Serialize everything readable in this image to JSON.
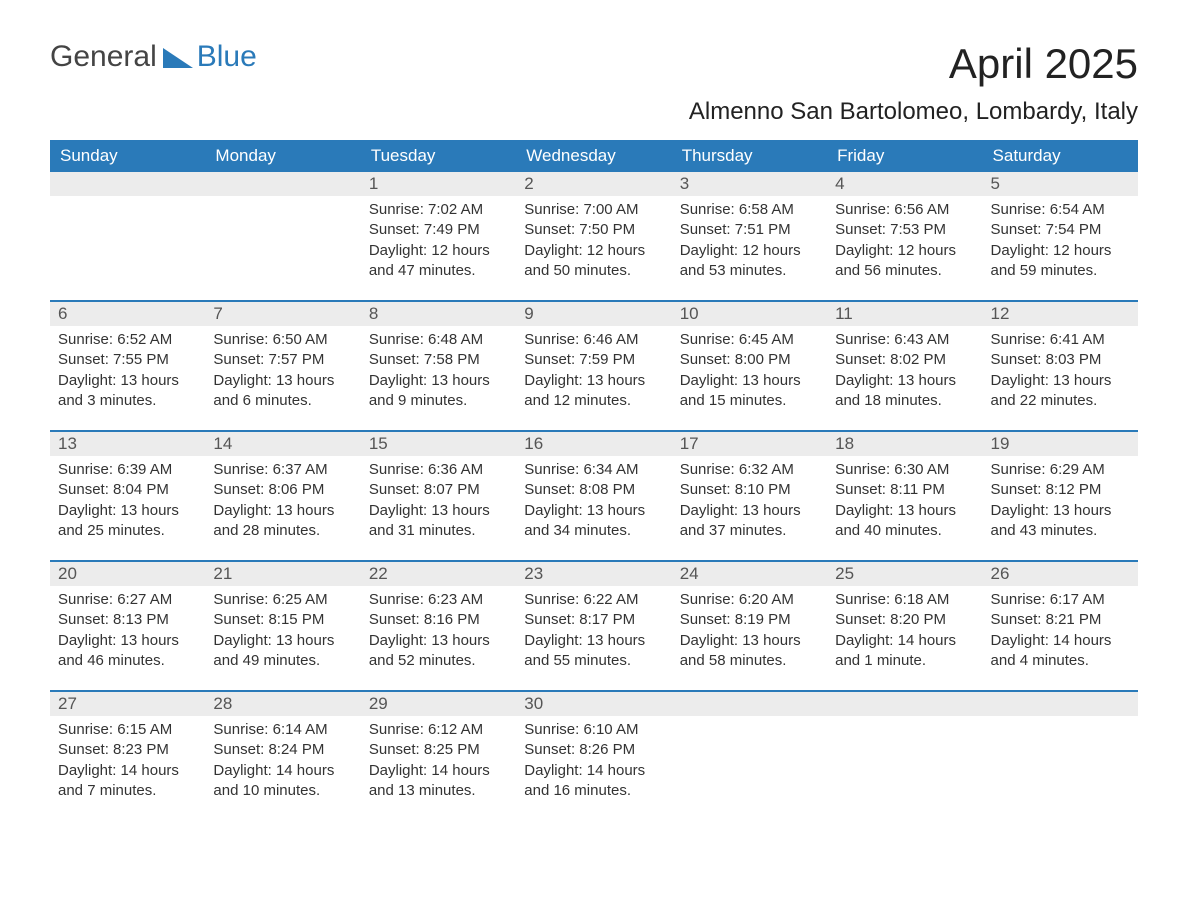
{
  "logo": {
    "general": "General",
    "blue": "Blue"
  },
  "title": "April 2025",
  "subtitle": "Almenno San Bartolomeo, Lombardy, Italy",
  "colors": {
    "header_bg": "#2a7ab9",
    "header_text": "#ffffff",
    "daynum_bg": "#ececec",
    "week_border": "#2a7ab9",
    "page_bg": "#ffffff",
    "text": "#333333"
  },
  "weekdays": [
    "Sunday",
    "Monday",
    "Tuesday",
    "Wednesday",
    "Thursday",
    "Friday",
    "Saturday"
  ],
  "weeks": [
    [
      {
        "day": "",
        "sunrise": "",
        "sunset": "",
        "daylight": ""
      },
      {
        "day": "",
        "sunrise": "",
        "sunset": "",
        "daylight": ""
      },
      {
        "day": "1",
        "sunrise": "Sunrise: 7:02 AM",
        "sunset": "Sunset: 7:49 PM",
        "daylight": "Daylight: 12 hours and 47 minutes."
      },
      {
        "day": "2",
        "sunrise": "Sunrise: 7:00 AM",
        "sunset": "Sunset: 7:50 PM",
        "daylight": "Daylight: 12 hours and 50 minutes."
      },
      {
        "day": "3",
        "sunrise": "Sunrise: 6:58 AM",
        "sunset": "Sunset: 7:51 PM",
        "daylight": "Daylight: 12 hours and 53 minutes."
      },
      {
        "day": "4",
        "sunrise": "Sunrise: 6:56 AM",
        "sunset": "Sunset: 7:53 PM",
        "daylight": "Daylight: 12 hours and 56 minutes."
      },
      {
        "day": "5",
        "sunrise": "Sunrise: 6:54 AM",
        "sunset": "Sunset: 7:54 PM",
        "daylight": "Daylight: 12 hours and 59 minutes."
      }
    ],
    [
      {
        "day": "6",
        "sunrise": "Sunrise: 6:52 AM",
        "sunset": "Sunset: 7:55 PM",
        "daylight": "Daylight: 13 hours and 3 minutes."
      },
      {
        "day": "7",
        "sunrise": "Sunrise: 6:50 AM",
        "sunset": "Sunset: 7:57 PM",
        "daylight": "Daylight: 13 hours and 6 minutes."
      },
      {
        "day": "8",
        "sunrise": "Sunrise: 6:48 AM",
        "sunset": "Sunset: 7:58 PM",
        "daylight": "Daylight: 13 hours and 9 minutes."
      },
      {
        "day": "9",
        "sunrise": "Sunrise: 6:46 AM",
        "sunset": "Sunset: 7:59 PM",
        "daylight": "Daylight: 13 hours and 12 minutes."
      },
      {
        "day": "10",
        "sunrise": "Sunrise: 6:45 AM",
        "sunset": "Sunset: 8:00 PM",
        "daylight": "Daylight: 13 hours and 15 minutes."
      },
      {
        "day": "11",
        "sunrise": "Sunrise: 6:43 AM",
        "sunset": "Sunset: 8:02 PM",
        "daylight": "Daylight: 13 hours and 18 minutes."
      },
      {
        "day": "12",
        "sunrise": "Sunrise: 6:41 AM",
        "sunset": "Sunset: 8:03 PM",
        "daylight": "Daylight: 13 hours and 22 minutes."
      }
    ],
    [
      {
        "day": "13",
        "sunrise": "Sunrise: 6:39 AM",
        "sunset": "Sunset: 8:04 PM",
        "daylight": "Daylight: 13 hours and 25 minutes."
      },
      {
        "day": "14",
        "sunrise": "Sunrise: 6:37 AM",
        "sunset": "Sunset: 8:06 PM",
        "daylight": "Daylight: 13 hours and 28 minutes."
      },
      {
        "day": "15",
        "sunrise": "Sunrise: 6:36 AM",
        "sunset": "Sunset: 8:07 PM",
        "daylight": "Daylight: 13 hours and 31 minutes."
      },
      {
        "day": "16",
        "sunrise": "Sunrise: 6:34 AM",
        "sunset": "Sunset: 8:08 PM",
        "daylight": "Daylight: 13 hours and 34 minutes."
      },
      {
        "day": "17",
        "sunrise": "Sunrise: 6:32 AM",
        "sunset": "Sunset: 8:10 PM",
        "daylight": "Daylight: 13 hours and 37 minutes."
      },
      {
        "day": "18",
        "sunrise": "Sunrise: 6:30 AM",
        "sunset": "Sunset: 8:11 PM",
        "daylight": "Daylight: 13 hours and 40 minutes."
      },
      {
        "day": "19",
        "sunrise": "Sunrise: 6:29 AM",
        "sunset": "Sunset: 8:12 PM",
        "daylight": "Daylight: 13 hours and 43 minutes."
      }
    ],
    [
      {
        "day": "20",
        "sunrise": "Sunrise: 6:27 AM",
        "sunset": "Sunset: 8:13 PM",
        "daylight": "Daylight: 13 hours and 46 minutes."
      },
      {
        "day": "21",
        "sunrise": "Sunrise: 6:25 AM",
        "sunset": "Sunset: 8:15 PM",
        "daylight": "Daylight: 13 hours and 49 minutes."
      },
      {
        "day": "22",
        "sunrise": "Sunrise: 6:23 AM",
        "sunset": "Sunset: 8:16 PM",
        "daylight": "Daylight: 13 hours and 52 minutes."
      },
      {
        "day": "23",
        "sunrise": "Sunrise: 6:22 AM",
        "sunset": "Sunset: 8:17 PM",
        "daylight": "Daylight: 13 hours and 55 minutes."
      },
      {
        "day": "24",
        "sunrise": "Sunrise: 6:20 AM",
        "sunset": "Sunset: 8:19 PM",
        "daylight": "Daylight: 13 hours and 58 minutes."
      },
      {
        "day": "25",
        "sunrise": "Sunrise: 6:18 AM",
        "sunset": "Sunset: 8:20 PM",
        "daylight": "Daylight: 14 hours and 1 minute."
      },
      {
        "day": "26",
        "sunrise": "Sunrise: 6:17 AM",
        "sunset": "Sunset: 8:21 PM",
        "daylight": "Daylight: 14 hours and 4 minutes."
      }
    ],
    [
      {
        "day": "27",
        "sunrise": "Sunrise: 6:15 AM",
        "sunset": "Sunset: 8:23 PM",
        "daylight": "Daylight: 14 hours and 7 minutes."
      },
      {
        "day": "28",
        "sunrise": "Sunrise: 6:14 AM",
        "sunset": "Sunset: 8:24 PM",
        "daylight": "Daylight: 14 hours and 10 minutes."
      },
      {
        "day": "29",
        "sunrise": "Sunrise: 6:12 AM",
        "sunset": "Sunset: 8:25 PM",
        "daylight": "Daylight: 14 hours and 13 minutes."
      },
      {
        "day": "30",
        "sunrise": "Sunrise: 6:10 AM",
        "sunset": "Sunset: 8:26 PM",
        "daylight": "Daylight: 14 hours and 16 minutes."
      },
      {
        "day": "",
        "sunrise": "",
        "sunset": "",
        "daylight": ""
      },
      {
        "day": "",
        "sunrise": "",
        "sunset": "",
        "daylight": ""
      },
      {
        "day": "",
        "sunrise": "",
        "sunset": "",
        "daylight": ""
      }
    ]
  ]
}
